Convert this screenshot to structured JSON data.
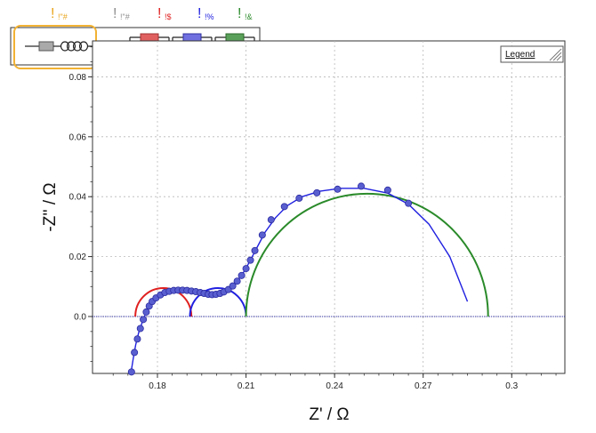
{
  "header": {
    "labels": [
      {
        "mark": "!",
        "sub": "!\"#",
        "color": "#e8a317"
      },
      {
        "mark": "!",
        "sub": "!\"#",
        "color": "#8c8c8c"
      },
      {
        "mark": "!",
        "sub": "!$",
        "color": "#e02020"
      },
      {
        "mark": "!",
        "sub": "!%",
        "color": "#2020e0"
      },
      {
        "mark": "!",
        "sub": "!&",
        "color": "#2a8a2a"
      }
    ],
    "highlight_color": "#f2b233"
  },
  "legend": {
    "label": "Legend",
    "placement": "top-right"
  },
  "chart_data": {
    "type": "scatter",
    "xlabel": "Z' / Ω",
    "ylabel": "-Z'' / Ω",
    "xlim": [
      0.158,
      0.318
    ],
    "ylim": [
      -0.019,
      0.092
    ],
    "x_ticks": [
      0.18,
      0.21,
      0.24,
      0.27,
      0.3
    ],
    "y_ticks": [
      0.0,
      0.02,
      0.04,
      0.06,
      0.08
    ],
    "x_tick_labels": [
      "0.18",
      "0.21",
      "0.24",
      "0.27",
      "0.3"
    ],
    "y_tick_labels": [
      "0.0",
      "0.02",
      "0.04",
      "0.06",
      "0.08"
    ],
    "grid": true,
    "arcs": [
      {
        "center": 0.182,
        "radius": 0.0095,
        "color": "#e02020"
      },
      {
        "center": 0.2005,
        "radius": 0.0095,
        "color": "#2020e0"
      },
      {
        "center": 0.251,
        "radius": 0.041,
        "color": "#2a8a2a"
      }
    ],
    "measured": {
      "marker_color": "#5a5fd0",
      "edge_color": "#2a2aa0",
      "points": [
        [
          0.1712,
          -0.0185
        ],
        [
          0.1722,
          -0.012
        ],
        [
          0.1732,
          -0.0075
        ],
        [
          0.1742,
          -0.004
        ],
        [
          0.1752,
          -0.001
        ],
        [
          0.1762,
          0.0015
        ],
        [
          0.1772,
          0.0035
        ],
        [
          0.1782,
          0.005
        ],
        [
          0.1795,
          0.0062
        ],
        [
          0.181,
          0.0072
        ],
        [
          0.1825,
          0.008
        ],
        [
          0.184,
          0.0084
        ],
        [
          0.1855,
          0.0087
        ],
        [
          0.187,
          0.0088
        ],
        [
          0.1885,
          0.0088
        ],
        [
          0.19,
          0.0087
        ],
        [
          0.1915,
          0.0085
        ],
        [
          0.193,
          0.0083
        ],
        [
          0.1945,
          0.008
        ],
        [
          0.1958,
          0.0077
        ],
        [
          0.1972,
          0.0074
        ],
        [
          0.1985,
          0.0073
        ],
        [
          0.1998,
          0.0074
        ],
        [
          0.2012,
          0.0077
        ],
        [
          0.2025,
          0.0082
        ],
        [
          0.204,
          0.009
        ],
        [
          0.2055,
          0.0102
        ],
        [
          0.207,
          0.0118
        ],
        [
          0.2085,
          0.0137
        ],
        [
          0.21,
          0.016
        ],
        [
          0.2115,
          0.0188
        ],
        [
          0.213,
          0.022
        ],
        [
          0.2155,
          0.0272
        ],
        [
          0.2185,
          0.0323
        ],
        [
          0.223,
          0.0367
        ],
        [
          0.228,
          0.0395
        ],
        [
          0.234,
          0.0413
        ],
        [
          0.241,
          0.0425
        ],
        [
          0.249,
          0.0435
        ],
        [
          0.258,
          0.0422
        ],
        [
          0.265,
          0.0378
        ]
      ]
    },
    "fit": {
      "line_color": "#2020e0",
      "points": [
        [
          0.171,
          -0.019
        ],
        [
          0.1718,
          -0.014
        ],
        [
          0.1726,
          -0.0095
        ],
        [
          0.1736,
          -0.0055
        ],
        [
          0.1748,
          -0.002
        ],
        [
          0.176,
          0.001
        ],
        [
          0.1772,
          0.0035
        ],
        [
          0.1785,
          0.0053
        ],
        [
          0.18,
          0.0067
        ],
        [
          0.1815,
          0.0077
        ],
        [
          0.183,
          0.0083
        ],
        [
          0.185,
          0.0087
        ],
        [
          0.187,
          0.0088
        ],
        [
          0.189,
          0.0088
        ],
        [
          0.191,
          0.0086
        ],
        [
          0.193,
          0.0083
        ],
        [
          0.195,
          0.0079
        ],
        [
          0.197,
          0.0075
        ],
        [
          0.1985,
          0.0073
        ],
        [
          0.2,
          0.0074
        ],
        [
          0.2015,
          0.0078
        ],
        [
          0.203,
          0.0084
        ],
        [
          0.2045,
          0.0094
        ],
        [
          0.206,
          0.0107
        ],
        [
          0.2075,
          0.0124
        ],
        [
          0.209,
          0.0145
        ],
        [
          0.2105,
          0.017
        ],
        [
          0.212,
          0.0198
        ],
        [
          0.214,
          0.0236
        ],
        [
          0.2165,
          0.0282
        ],
        [
          0.22,
          0.033
        ],
        [
          0.224,
          0.037
        ],
        [
          0.229,
          0.04
        ],
        [
          0.235,
          0.0418
        ],
        [
          0.242,
          0.0428
        ],
        [
          0.25,
          0.0428
        ],
        [
          0.258,
          0.0412
        ],
        [
          0.265,
          0.0375
        ],
        [
          0.272,
          0.0308
        ],
        [
          0.279,
          0.02
        ],
        [
          0.285,
          0.005
        ]
      ]
    },
    "baseline_color": "#2a2aa0"
  }
}
